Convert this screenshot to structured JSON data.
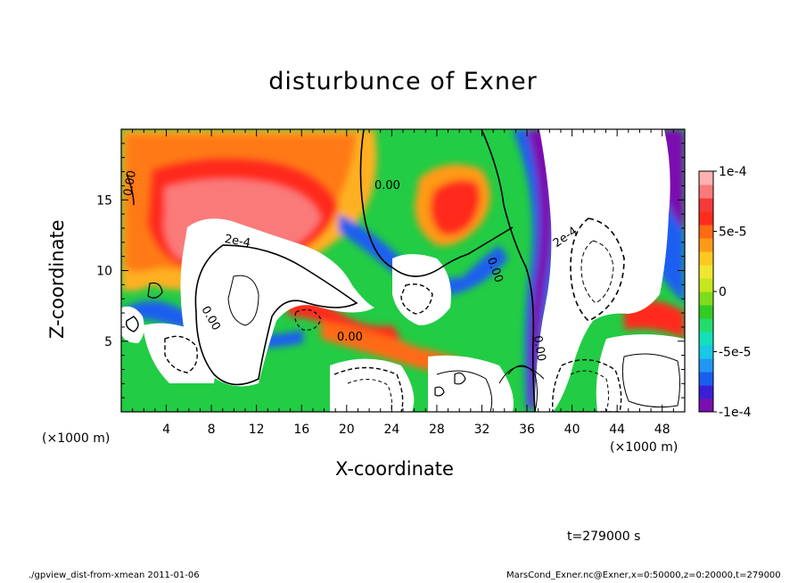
{
  "chart_data": {
    "type": "heatmap",
    "title": "disturbunce of Exner",
    "xlabel": "X-coordinate",
    "ylabel": "Z-coordinate",
    "x_unit": "(×1000 m)",
    "x_ticks": [
      4,
      8,
      12,
      16,
      20,
      24,
      28,
      32,
      36,
      40,
      44,
      48
    ],
    "y_ticks": [
      5,
      10,
      15
    ],
    "xlim": [
      0,
      50
    ],
    "ylim": [
      0,
      20
    ],
    "colorbar": {
      "range": [
        -0.0001,
        0.0001
      ],
      "tick_values": [
        0.0001,
        5e-05,
        0,
        -5e-05,
        -0.0001
      ],
      "tick_labels": [
        "1e-4",
        "5e-5",
        "0",
        "-5e-5",
        "-1e-4"
      ],
      "colors": [
        "#7a0fb0",
        "#3b1fd4",
        "#1a5ef0",
        "#2196f3",
        "#19c8e6",
        "#13e0b8",
        "#22dd6e",
        "#33cc22",
        "#7ddc1c",
        "#c8e61e",
        "#f0e632",
        "#ffc81e",
        "#ff9a18",
        "#ff6a14",
        "#ff2c1c",
        "#f53a3a",
        "#fa7a7a",
        "#ffb0b0"
      ]
    },
    "contour_labels": [
      "0.00",
      "0.00",
      "2e-4",
      "0.00",
      "0.00",
      "0.00",
      "2e-4",
      "0.00",
      "2e-4"
    ],
    "time_label": "t=279000 s"
  },
  "footer": {
    "left": "./gpview_dist-from-xmean   2011-01-06",
    "right": "MarsCond_Exner.nc@Exner,x=0:50000,z=0:20000,t=279000"
  }
}
